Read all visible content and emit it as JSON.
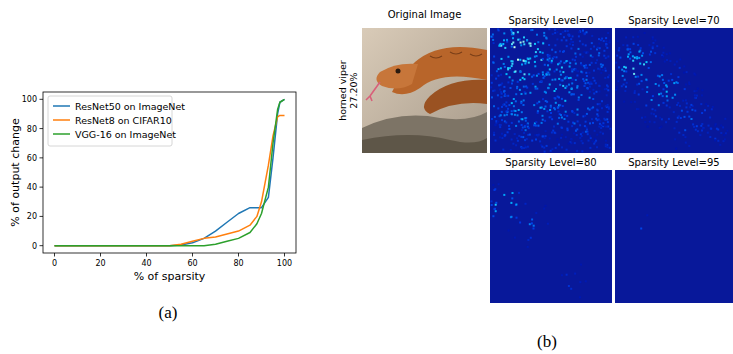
{
  "chart_data": {
    "type": "line",
    "x_label": "% of sparsity",
    "y_label": "% of output change",
    "x": [
      0,
      10,
      20,
      30,
      40,
      50,
      55,
      60,
      65,
      70,
      75,
      80,
      85,
      88,
      90,
      93,
      95,
      97,
      98,
      100
    ],
    "series": [
      {
        "name": "ResNet50 on ImageNet",
        "color": "#1f77b4",
        "values": [
          0,
          0,
          0,
          0,
          0,
          0,
          0.5,
          2,
          5,
          10,
          16,
          22,
          26,
          26,
          26,
          33,
          60,
          90,
          98,
          100
        ]
      },
      {
        "name": "ResNet8 on CIFAR10",
        "color": "#ff7f0e",
        "values": [
          0,
          0,
          0,
          0,
          0,
          0,
          1,
          3,
          5,
          6,
          8,
          10,
          14,
          20,
          30,
          55,
          75,
          88,
          89,
          89
        ]
      },
      {
        "name": "VGG-16 on ImageNet",
        "color": "#2ca02c",
        "values": [
          0,
          0,
          0,
          0,
          0,
          0,
          0,
          0,
          0,
          1,
          3,
          5,
          9,
          15,
          22,
          40,
          70,
          93,
          98,
          100
        ]
      }
    ],
    "xlim": [
      -5,
      105
    ],
    "ylim": [
      -5,
      105
    ],
    "xticks": [
      0,
      20,
      40,
      60,
      80,
      100
    ],
    "yticks": [
      0,
      20,
      40,
      60,
      80,
      100
    ],
    "grid": false,
    "legend": "upper left"
  },
  "panel_labels": [
    "(a)",
    "(b)"
  ],
  "image_panel": {
    "title": "Original Image",
    "class_label": "horned viper",
    "confidence": "27.20%",
    "heatmaps": [
      {
        "title": "Sparsity Level=0"
      },
      {
        "title": "Sparsity Level=70"
      },
      {
        "title": "Sparsity Level=80"
      },
      {
        "title": "Sparsity Level=95"
      }
    ]
  }
}
